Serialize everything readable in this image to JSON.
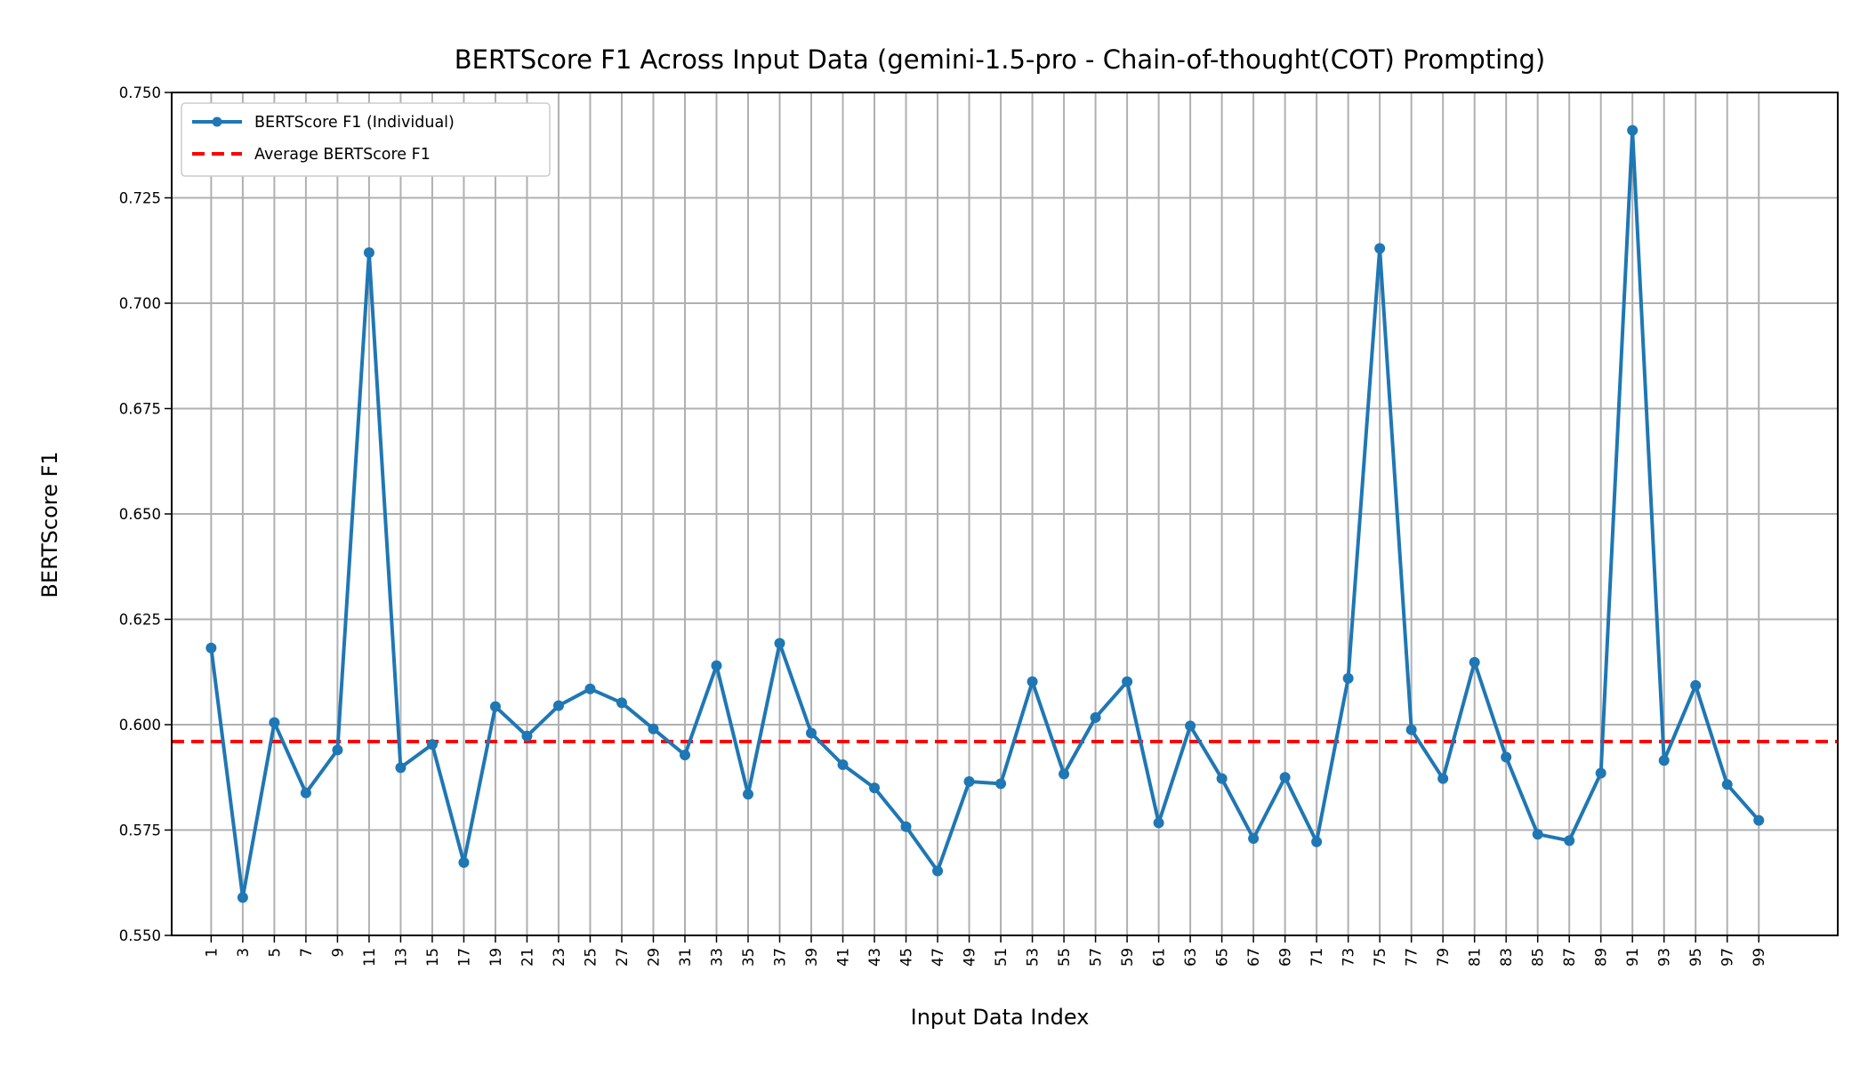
{
  "chart_data": {
    "type": "line",
    "title": "BERTScore F1 Across Input Data (gemini-1.5-pro - Chain-of-thought(COT) Prompting)",
    "xlabel": "Input Data Index",
    "ylabel": "BERTScore F1",
    "xlim": [
      -1.5,
      104
    ],
    "ylim": [
      0.55,
      0.75
    ],
    "grid": true,
    "legend_position": "upper-left",
    "x": [
      1,
      3,
      5,
      7,
      9,
      11,
      13,
      15,
      17,
      19,
      21,
      23,
      25,
      27,
      29,
      31,
      33,
      35,
      37,
      39,
      41,
      43,
      45,
      47,
      49,
      51,
      53,
      55,
      57,
      59,
      61,
      63,
      65,
      67,
      69,
      71,
      73,
      75,
      77,
      79,
      81,
      83,
      85,
      87,
      89,
      91,
      93,
      95,
      97,
      99
    ],
    "x_tick_labels": [
      "1",
      "3",
      "5",
      "7",
      "9",
      "11",
      "13",
      "15",
      "17",
      "19",
      "21",
      "23",
      "25",
      "27",
      "29",
      "31",
      "33",
      "35",
      "37",
      "39",
      "41",
      "43",
      "45",
      "47",
      "49",
      "51",
      "53",
      "55",
      "57",
      "59",
      "61",
      "63",
      "65",
      "67",
      "69",
      "71",
      "73",
      "75",
      "77",
      "79",
      "81",
      "83",
      "85",
      "87",
      "89",
      "91",
      "93",
      "95",
      "97",
      "99"
    ],
    "y_ticks": [
      0.55,
      0.575,
      0.6,
      0.625,
      0.65,
      0.675,
      0.7,
      0.725,
      0.75
    ],
    "y_tick_labels": [
      "0.550",
      "0.575",
      "0.600",
      "0.625",
      "0.650",
      "0.675",
      "0.700",
      "0.725",
      "0.750"
    ],
    "series": [
      {
        "name": "BERTScore F1 (Individual)",
        "color": "#1f77b4",
        "style": "solid-with-markers",
        "values": [
          0.6182,
          0.559,
          0.6005,
          0.5838,
          0.594,
          0.712,
          0.5898,
          0.5953,
          0.5673,
          0.6043,
          0.5973,
          0.6045,
          0.6085,
          0.6052,
          0.599,
          0.5928,
          0.614,
          0.5835,
          0.6193,
          0.598,
          0.5905,
          0.585,
          0.5758,
          0.5653,
          0.5865,
          0.586,
          0.6102,
          0.5883,
          0.6017,
          0.6102,
          0.5767,
          0.5997,
          0.5872,
          0.573,
          0.5875,
          0.5722,
          0.611,
          0.713,
          0.5988,
          0.5872,
          0.6148,
          0.5923,
          0.574,
          0.5725,
          0.5885,
          0.741,
          0.5915,
          0.6093,
          0.5858,
          0.5773
        ]
      }
    ],
    "reference_line": {
      "name": "Average BERTScore F1",
      "color": "#ff0000",
      "style": "dashed",
      "value": 0.596
    }
  }
}
